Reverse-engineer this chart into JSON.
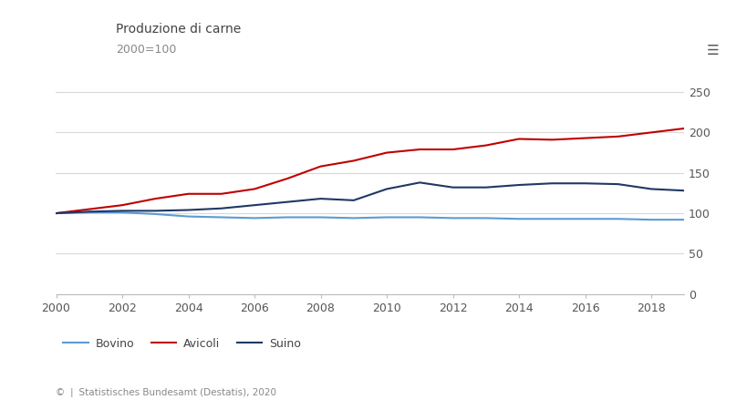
{
  "title": "Produzione di carne",
  "subtitle": "2000=100",
  "credit": "© ❘ Statistisches Bundesamt (Destatis), 2020",
  "years": [
    2000,
    2001,
    2002,
    2003,
    2004,
    2005,
    2006,
    2007,
    2008,
    2009,
    2010,
    2011,
    2012,
    2013,
    2014,
    2015,
    2016,
    2017,
    2018,
    2019
  ],
  "bovino": [
    100,
    101,
    101,
    99,
    96,
    95,
    94,
    95,
    95,
    94,
    95,
    95,
    94,
    94,
    93,
    93,
    93,
    93,
    92,
    92
  ],
  "avicoli": [
    100,
    105,
    110,
    118,
    124,
    124,
    130,
    143,
    158,
    165,
    175,
    179,
    179,
    184,
    192,
    191,
    193,
    195,
    200,
    205
  ],
  "suino": [
    100,
    102,
    103,
    103,
    104,
    106,
    110,
    114,
    118,
    116,
    130,
    138,
    132,
    132,
    135,
    137,
    137,
    136,
    130,
    128
  ],
  "bovino_color": "#5b9bd5",
  "avicoli_color": "#c00000",
  "suino_color": "#1f3864",
  "background_color": "#ffffff",
  "grid_color": "#d9d9d9",
  "ylim": [
    0,
    260
  ],
  "yticks": [
    0,
    50,
    100,
    150,
    200,
    250
  ],
  "tick_fontsize": 9,
  "title_fontsize": 10,
  "subtitle_fontsize": 9,
  "legend_labels": [
    "Bovino",
    "Avicoli",
    "Suino"
  ],
  "line_width": 1.5
}
